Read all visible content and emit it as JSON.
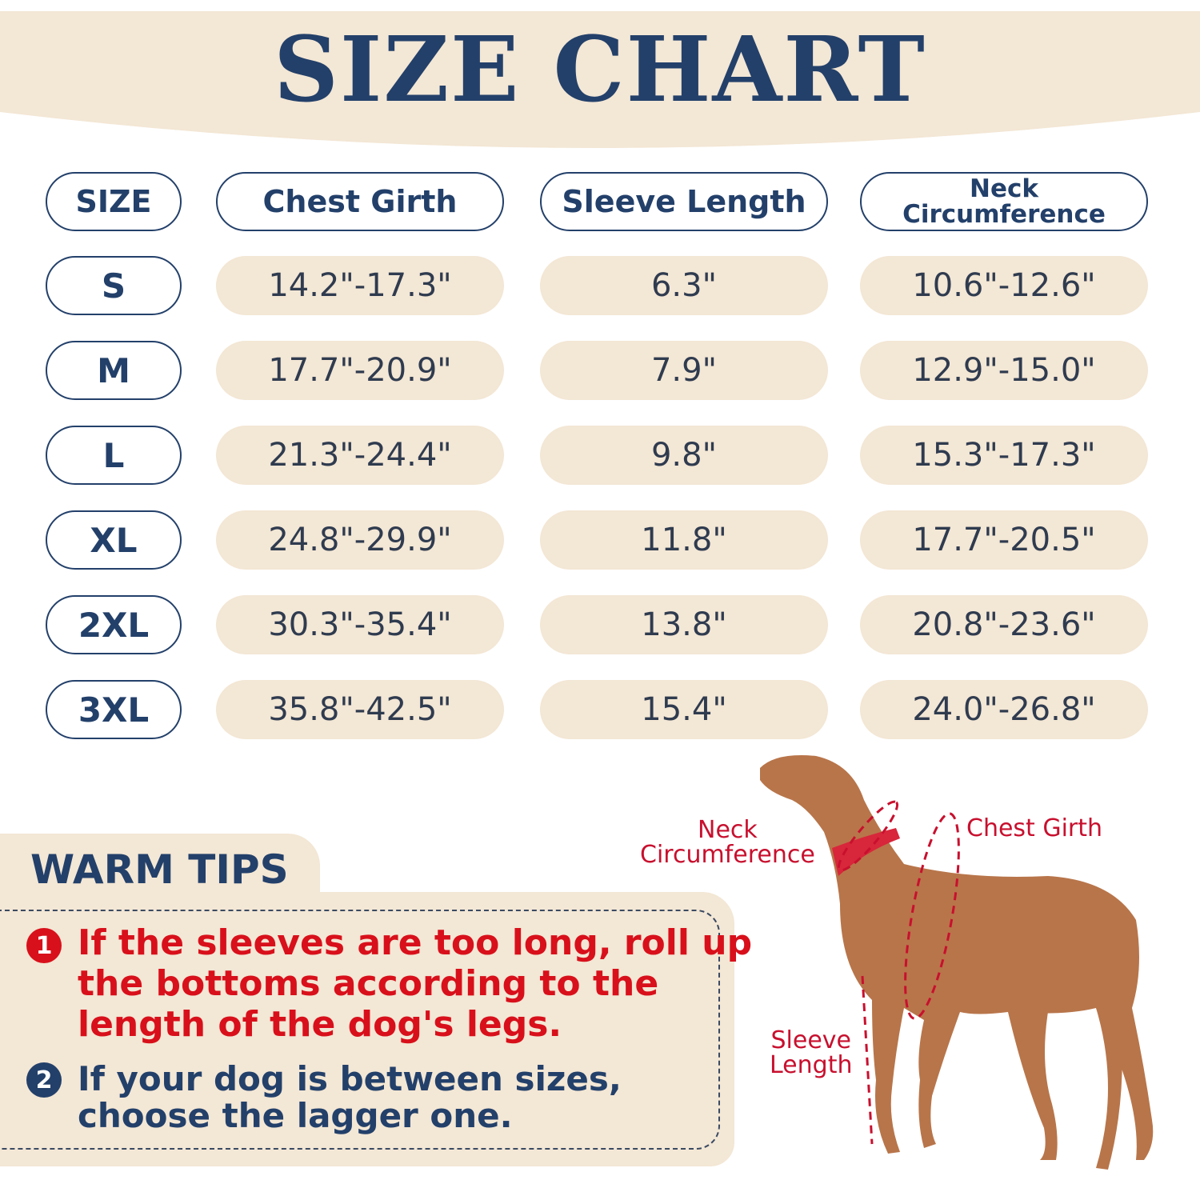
{
  "title": "SIZE CHART",
  "colors": {
    "navy": "#23406a",
    "beige": "#f3e7d5",
    "red": "#d8101b"
  },
  "table": {
    "headers": [
      "SIZE",
      "Chest Girth",
      "Sleeve Length",
      "Neck Circumference"
    ],
    "header_neck_lines": [
      "Neck",
      "Circumference"
    ],
    "rows": [
      {
        "size": "S",
        "chest": "14.2\"-17.3\"",
        "sleeve": "6.3\"",
        "neck": "10.6\"-12.6\""
      },
      {
        "size": "M",
        "chest": "17.7\"-20.9\"",
        "sleeve": "7.9\"",
        "neck": "12.9\"-15.0\""
      },
      {
        "size": "L",
        "chest": "21.3\"-24.4\"",
        "sleeve": "9.8\"",
        "neck": "15.3\"-17.3\""
      },
      {
        "size": "XL",
        "chest": "24.8\"-29.9\"",
        "sleeve": "11.8\"",
        "neck": "17.7\"-20.5\""
      },
      {
        "size": "2XL",
        "chest": "30.3\"-35.4\"",
        "sleeve": "13.8\"",
        "neck": "20.8\"-23.6\""
      },
      {
        "size": "3XL",
        "chest": "35.8\"-42.5\"",
        "sleeve": "15.4\"",
        "neck": "24.0\"-26.8\""
      }
    ]
  },
  "tips": {
    "heading": "WARM TIPS",
    "items": [
      {
        "number": "1",
        "lines": [
          "If the sleeves are too long, roll up",
          "the bottoms according to the",
          "length of  the dog's legs."
        ]
      },
      {
        "number": "2",
        "lines": [
          "If your dog is between sizes,",
          "choose the lagger one."
        ]
      }
    ]
  },
  "diagram": {
    "neck_label": [
      "Neck",
      "Circumference"
    ],
    "chest_label": "Chest Girth",
    "sleeve_label": [
      "Sleeve",
      "Length"
    ]
  }
}
